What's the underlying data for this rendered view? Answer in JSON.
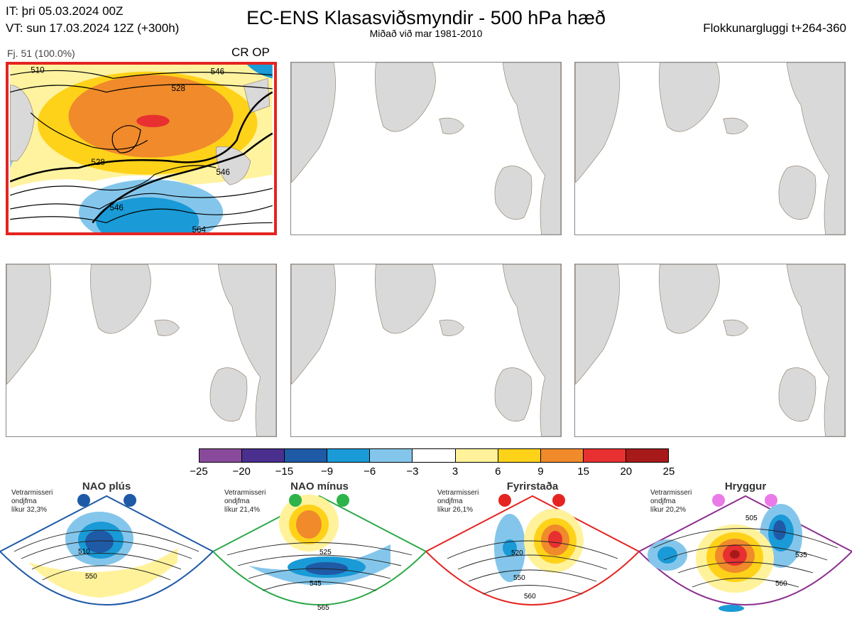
{
  "header": {
    "it_line": "IT: þri 05.03.2024 00Z",
    "vt_line": "VT: sun 17.03.2024 12Z  (+300h)",
    "title": "EC-ENS Klasasviðsmyndir - 500 hPa hæð",
    "subtitle": "Miðað við mar 1981-2010",
    "window": "Flokkunargluggi t+264-360"
  },
  "panel1": {
    "member_label": "Fj. 51 (100.0%)",
    "regime_code": "CR OP",
    "contour_labels": [
      "510",
      "528",
      "528",
      "546",
      "546",
      "564",
      "546"
    ]
  },
  "legend": {
    "colors": [
      "#8a4a9c",
      "#4a2f8f",
      "#1f5aa6",
      "#1a9ad6",
      "#84c6eb",
      "#ffffff",
      "#fff29a",
      "#ffd21a",
      "#f08a2b",
      "#e83030",
      "#a81a1a"
    ],
    "ticks": [
      "−25",
      "−20",
      "−15",
      "−9",
      "−6",
      "−3",
      "3",
      "6",
      "9",
      "15",
      "20",
      "25"
    ]
  },
  "regimes": [
    {
      "name": "NAO plús",
      "note1": "Vetrarmisseri",
      "note2": "ondjfma",
      "note3": "líkur 32,3%",
      "color": "#1f5aa6",
      "dot": "#1f5aa6",
      "labels": [
        "510",
        "550"
      ]
    },
    {
      "name": "NAO mínus",
      "note1": "Vetrarmisseri",
      "note2": "ondjfma",
      "note3": "líkur 21,4%",
      "color": "#2ea84a",
      "dot": "#2db34a",
      "labels": [
        "525",
        "545",
        "565"
      ]
    },
    {
      "name": "Fyrirstaða",
      "note1": "Vetrarmisseri",
      "note2": "ondjfma",
      "note3": "líkur 26,1%",
      "color": "#e52421",
      "dot": "#e52421",
      "labels": [
        "520",
        "550",
        "560"
      ]
    },
    {
      "name": "Hryggur",
      "note1": "Vetrarmisseri",
      "note2": "ondjfma",
      "note3": "líkur 20,2%",
      "color": "#8b2f8f",
      "dot": "#e97ae8",
      "labels": [
        "505",
        "535",
        "560"
      ]
    }
  ]
}
